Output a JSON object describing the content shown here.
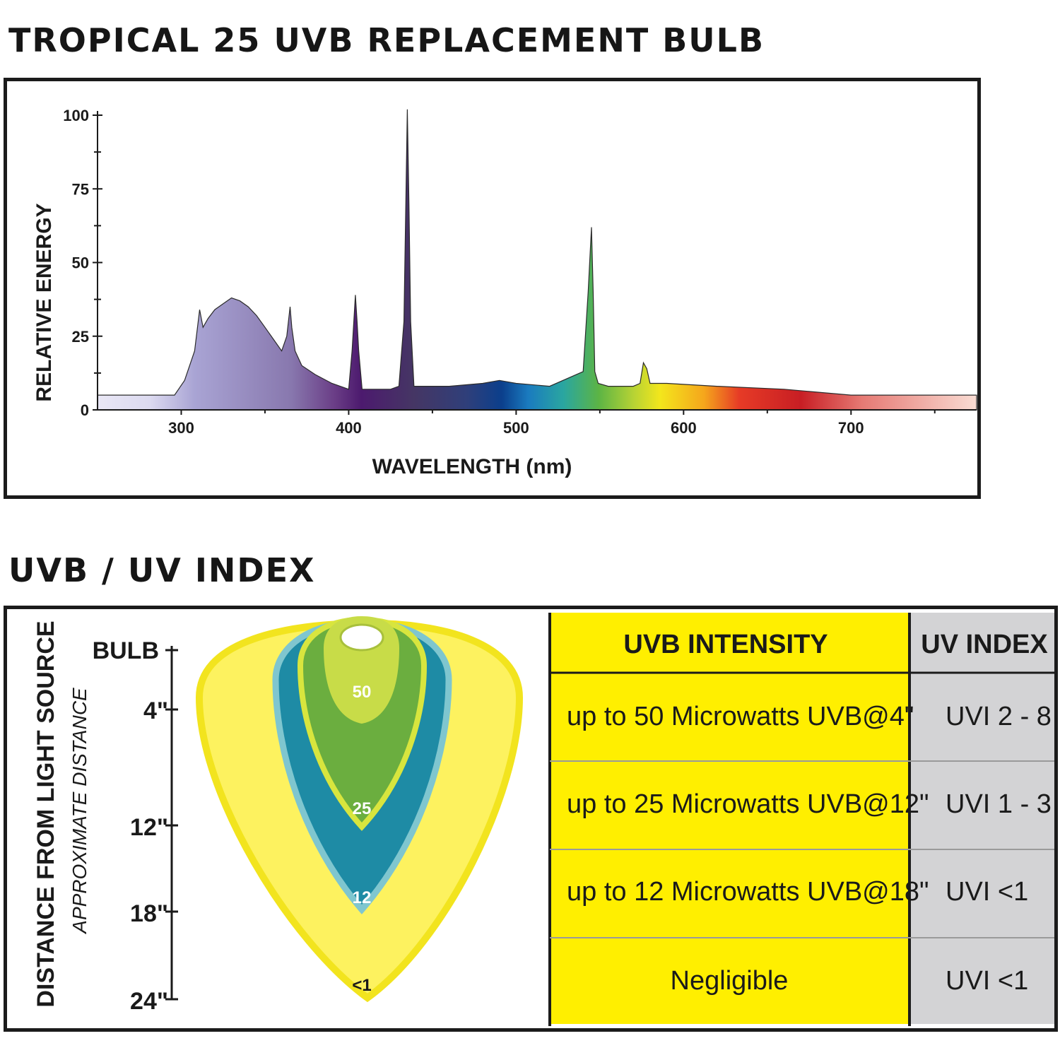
{
  "section1_title": "TROPICAL 25 UVB REPLACEMENT BULB",
  "section2_title": "UVB / UV INDEX",
  "chart_data": {
    "type": "area",
    "title": "TROPICAL 25 UVB REPLACEMENT BULB",
    "xlabel": "WAVELENGTH (nm)",
    "ylabel": "RELATIVE ENERGY",
    "xlim": [
      250,
      775
    ],
    "ylim": [
      0,
      100
    ],
    "x_ticks": [
      300,
      400,
      500,
      600,
      700
    ],
    "y_ticks": [
      0,
      25,
      50,
      75,
      100
    ],
    "grid": false,
    "x": [
      250,
      296,
      302,
      308,
      311,
      313,
      316,
      320,
      325,
      330,
      335,
      340,
      345,
      350,
      355,
      360,
      363,
      365,
      366,
      368,
      372,
      380,
      390,
      400,
      402,
      404,
      405,
      406,
      408,
      415,
      425,
      430,
      433,
      435,
      436,
      437,
      439,
      445,
      460,
      480,
      490,
      500,
      520,
      540,
      543,
      545,
      546,
      547,
      549,
      555,
      570,
      574,
      576,
      578,
      580,
      590,
      620,
      660,
      700,
      740,
      775
    ],
    "y": [
      5,
      5,
      10,
      20,
      34,
      28,
      31,
      34,
      36,
      38,
      37,
      35,
      32,
      28,
      24,
      20,
      25,
      35,
      28,
      20,
      15,
      12,
      9,
      7,
      20,
      39,
      30,
      20,
      7,
      7,
      7,
      8,
      30,
      102,
      70,
      30,
      8,
      8,
      8,
      9,
      10,
      9,
      8,
      13,
      40,
      62,
      40,
      13,
      9,
      8,
      8,
      9,
      16,
      14,
      9,
      9,
      8,
      7,
      5,
      5,
      5
    ]
  },
  "uvb_index": {
    "distance_axis_title": "DISTANCE FROM LIGHT SOURCE",
    "distance_axis_subtitle": "APPROXIMATE DISTANCE",
    "distance_labels": [
      "BULB",
      "4\"",
      "12\"",
      "18\"",
      "24\""
    ],
    "zone_labels": [
      "50",
      "25",
      "12",
      "<1"
    ],
    "columns": [
      "UVB INTENSITY",
      "UV INDEX"
    ],
    "rows": [
      {
        "intensity": "up to 50 Microwatts UVB@4\"",
        "index": "UVI 2 - 8"
      },
      {
        "intensity": "up to 25 Microwatts UVB@12\"",
        "index": "UVI 1 - 3"
      },
      {
        "intensity": "up to 12 Microwatts UVB@18\"",
        "index": "UVI <1"
      },
      {
        "intensity": "Negligible",
        "index": "UVI <1"
      }
    ]
  },
  "colors": {
    "table_yellow": "#ffef00",
    "table_gray": "#d3d3d5",
    "zone_outer_yellow": "#fdf25f",
    "zone_teal": "#1e8ba5",
    "zone_green": "#6bae3f",
    "zone_lime": "#c8dc48"
  }
}
